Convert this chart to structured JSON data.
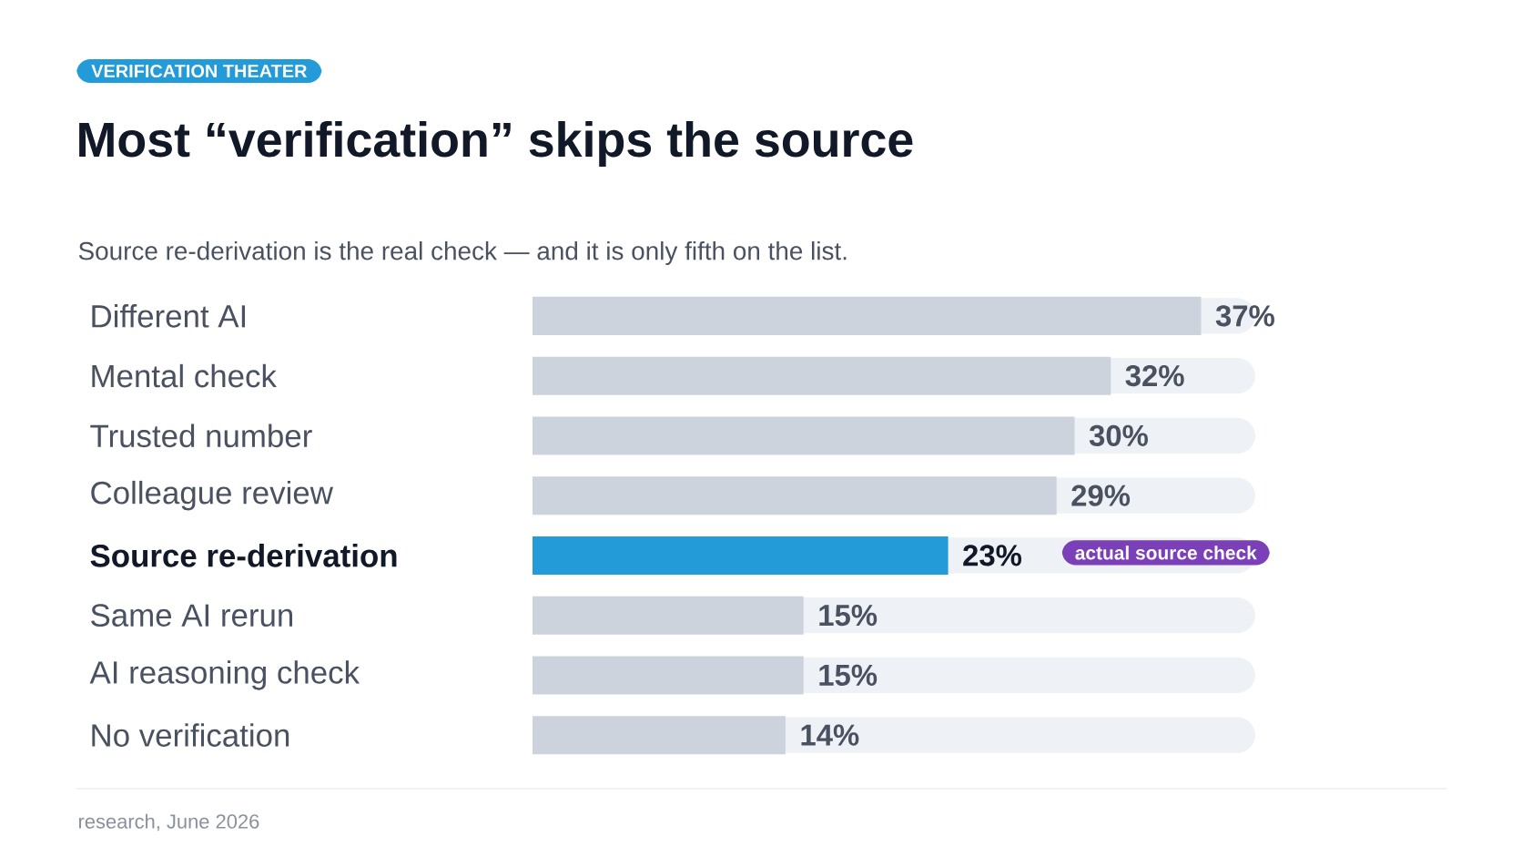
{
  "chart_data": {
    "type": "bar",
    "orientation": "horizontal",
    "title": "Most “verification” skips the source",
    "subtitle": "Source re-derivation is the real check — and it is only fifth on the list.",
    "categories": [
      "Different AI",
      "Mental check",
      "Trusted number",
      "Colleague review",
      "Source re-derivation",
      "Same AI rerun",
      "AI reasoning check",
      "No verification"
    ],
    "values": [
      37,
      32,
      30,
      29,
      23,
      15,
      15,
      14
    ],
    "value_labels": [
      "37%",
      "32%",
      "30%",
      "29%",
      "23%",
      "15%",
      "15%",
      "14%"
    ],
    "colors": [
      "#cdd3dd",
      "#cdd3dd",
      "#cdd3dd",
      "#cdd3dd",
      "#229bd8",
      "#cdd3dd",
      "#cdd3dd",
      "#cdd3dd"
    ],
    "xlim": [
      0,
      40
    ],
    "tick_labels": "y",
    "annotations": [
      "VERIFICATION THEATER",
      "actual source check",
      "research, June 2026"
    ]
  }
}
